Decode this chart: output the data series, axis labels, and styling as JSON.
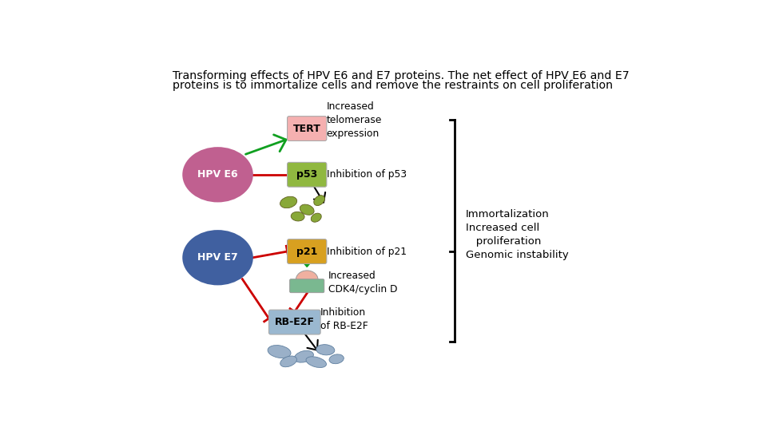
{
  "title_line1": "Transforming effects of HPV E6 and E7 proteins. The net effect of HPV E6 and E7",
  "title_line2": "proteins is to immortalize cells and remove the restraints on cell proliferation",
  "background_color": "#ffffff",
  "hpv_e6_color": "#c06090",
  "hpv_e7_color": "#4060a0",
  "tert_color": "#f5b0b0",
  "p53_color": "#90b840",
  "p21_color": "#d8a020",
  "rb_color": "#9ab8d0",
  "frag_green": "#88a838",
  "frag_blue": "#9ab0c8",
  "outcome_lines": [
    "Immortalization",
    "Increased cell",
    "   proliferation",
    "Genomic instability"
  ]
}
